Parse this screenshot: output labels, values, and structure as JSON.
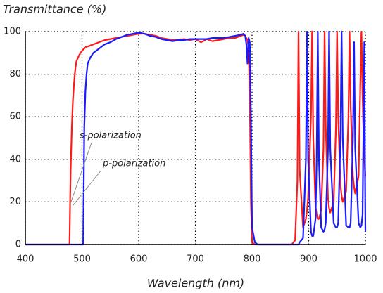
{
  "chart_data": {
    "type": "line",
    "title": "Transmittance (%)",
    "xlabel": "Wavelength (nm)",
    "x": [
      400,
      470,
      478,
      479,
      480,
      482,
      484,
      486,
      488,
      490,
      495,
      500,
      502,
      503,
      504,
      506,
      508,
      510,
      515,
      520,
      530,
      540,
      550,
      560,
      570,
      580,
      590,
      600,
      610,
      620,
      630,
      640,
      650,
      660,
      670,
      680,
      690,
      700,
      710,
      720,
      730,
      740,
      750,
      760,
      770,
      780,
      785,
      788,
      790,
      792,
      794,
      796,
      798,
      800,
      805,
      810,
      850,
      870,
      876,
      880,
      882,
      884,
      890,
      895,
      897,
      899,
      904,
      906,
      908,
      912,
      914,
      916,
      918,
      922,
      926,
      928,
      930,
      934,
      936,
      938,
      944,
      948,
      950,
      952,
      956,
      958,
      960,
      966,
      970,
      972,
      974,
      978,
      980,
      982,
      988,
      991,
      993,
      995,
      996,
      998,
      1000
    ],
    "series": [
      {
        "name": "s-polarization",
        "color": "#ff1a1a",
        "values": [
          0,
          0,
          0,
          20,
          35,
          55,
          68,
          76,
          82,
          86,
          89,
          91,
          91.5,
          92,
          92,
          92.5,
          93,
          93,
          93.5,
          94,
          95,
          96,
          96.5,
          97,
          97.5,
          98,
          98.5,
          99,
          99,
          98.5,
          98,
          97,
          96.5,
          96,
          96,
          96.5,
          96,
          96.5,
          95,
          96.5,
          95.5,
          96,
          96.5,
          97,
          97,
          98,
          98.5,
          98,
          97,
          96,
          92,
          70,
          20,
          1,
          0,
          0,
          0,
          0,
          2,
          30,
          100,
          35,
          8,
          12,
          16,
          22,
          60,
          100,
          50,
          18,
          14,
          12,
          12,
          16,
          45,
          100,
          55,
          22,
          17,
          15,
          20,
          55,
          100,
          60,
          28,
          23,
          20,
          25,
          60,
          100,
          65,
          32,
          27,
          24,
          32,
          75,
          100,
          70,
          58,
          42,
          32
        ]
      },
      {
        "name": "p-polarization",
        "color": "#1a1aff",
        "values": [
          0,
          0,
          0,
          0,
          0,
          0,
          0,
          0,
          0,
          0,
          0,
          0,
          0,
          25,
          55,
          72,
          80,
          85,
          88,
          90,
          92,
          94,
          95,
          96.5,
          97.5,
          98.5,
          99,
          99.5,
          99,
          98,
          97.5,
          96.5,
          96,
          95.5,
          96,
          96,
          96.5,
          96.5,
          96.5,
          96.5,
          97,
          97,
          97,
          97.5,
          98,
          98.5,
          99,
          98,
          94,
          85,
          97,
          95,
          60,
          8,
          1,
          0,
          0,
          0,
          0,
          0,
          0,
          1,
          3,
          40,
          100,
          40,
          6,
          4,
          4,
          12,
          40,
          100,
          40,
          8,
          6,
          7,
          10,
          45,
          100,
          45,
          10,
          8,
          8,
          10,
          50,
          100,
          50,
          9,
          8,
          8,
          10,
          50,
          95,
          45,
          10,
          8,
          9,
          14,
          40,
          95,
          6
        ]
      }
    ],
    "xlim": [
      400,
      1000
    ],
    "xticks": [
      400,
      500,
      600,
      700,
      800,
      900,
      1000
    ],
    "ylim": [
      0,
      100
    ],
    "yticks": [
      0,
      20,
      40,
      60,
      80,
      100
    ],
    "grid": true
  }
}
